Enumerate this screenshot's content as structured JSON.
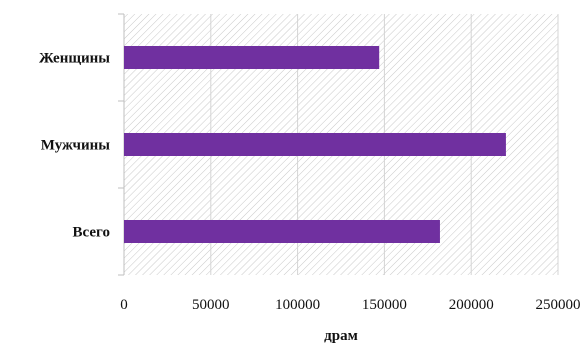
{
  "chart_data": {
    "type": "bar",
    "orientation": "horizontal",
    "categories": [
      "Женщины",
      "Мужчины",
      "Всего"
    ],
    "values": [
      147000,
      220000,
      182000
    ],
    "xlabel": "драм",
    "ylabel": "",
    "title": "",
    "xlim": [
      0,
      250000
    ],
    "x_ticks": [
      "0",
      "50000",
      "100000",
      "150000",
      "200000",
      "250000"
    ],
    "grid": "vertical",
    "bar_color": "#7030A0",
    "background_pattern": "diagonal-hatch"
  }
}
